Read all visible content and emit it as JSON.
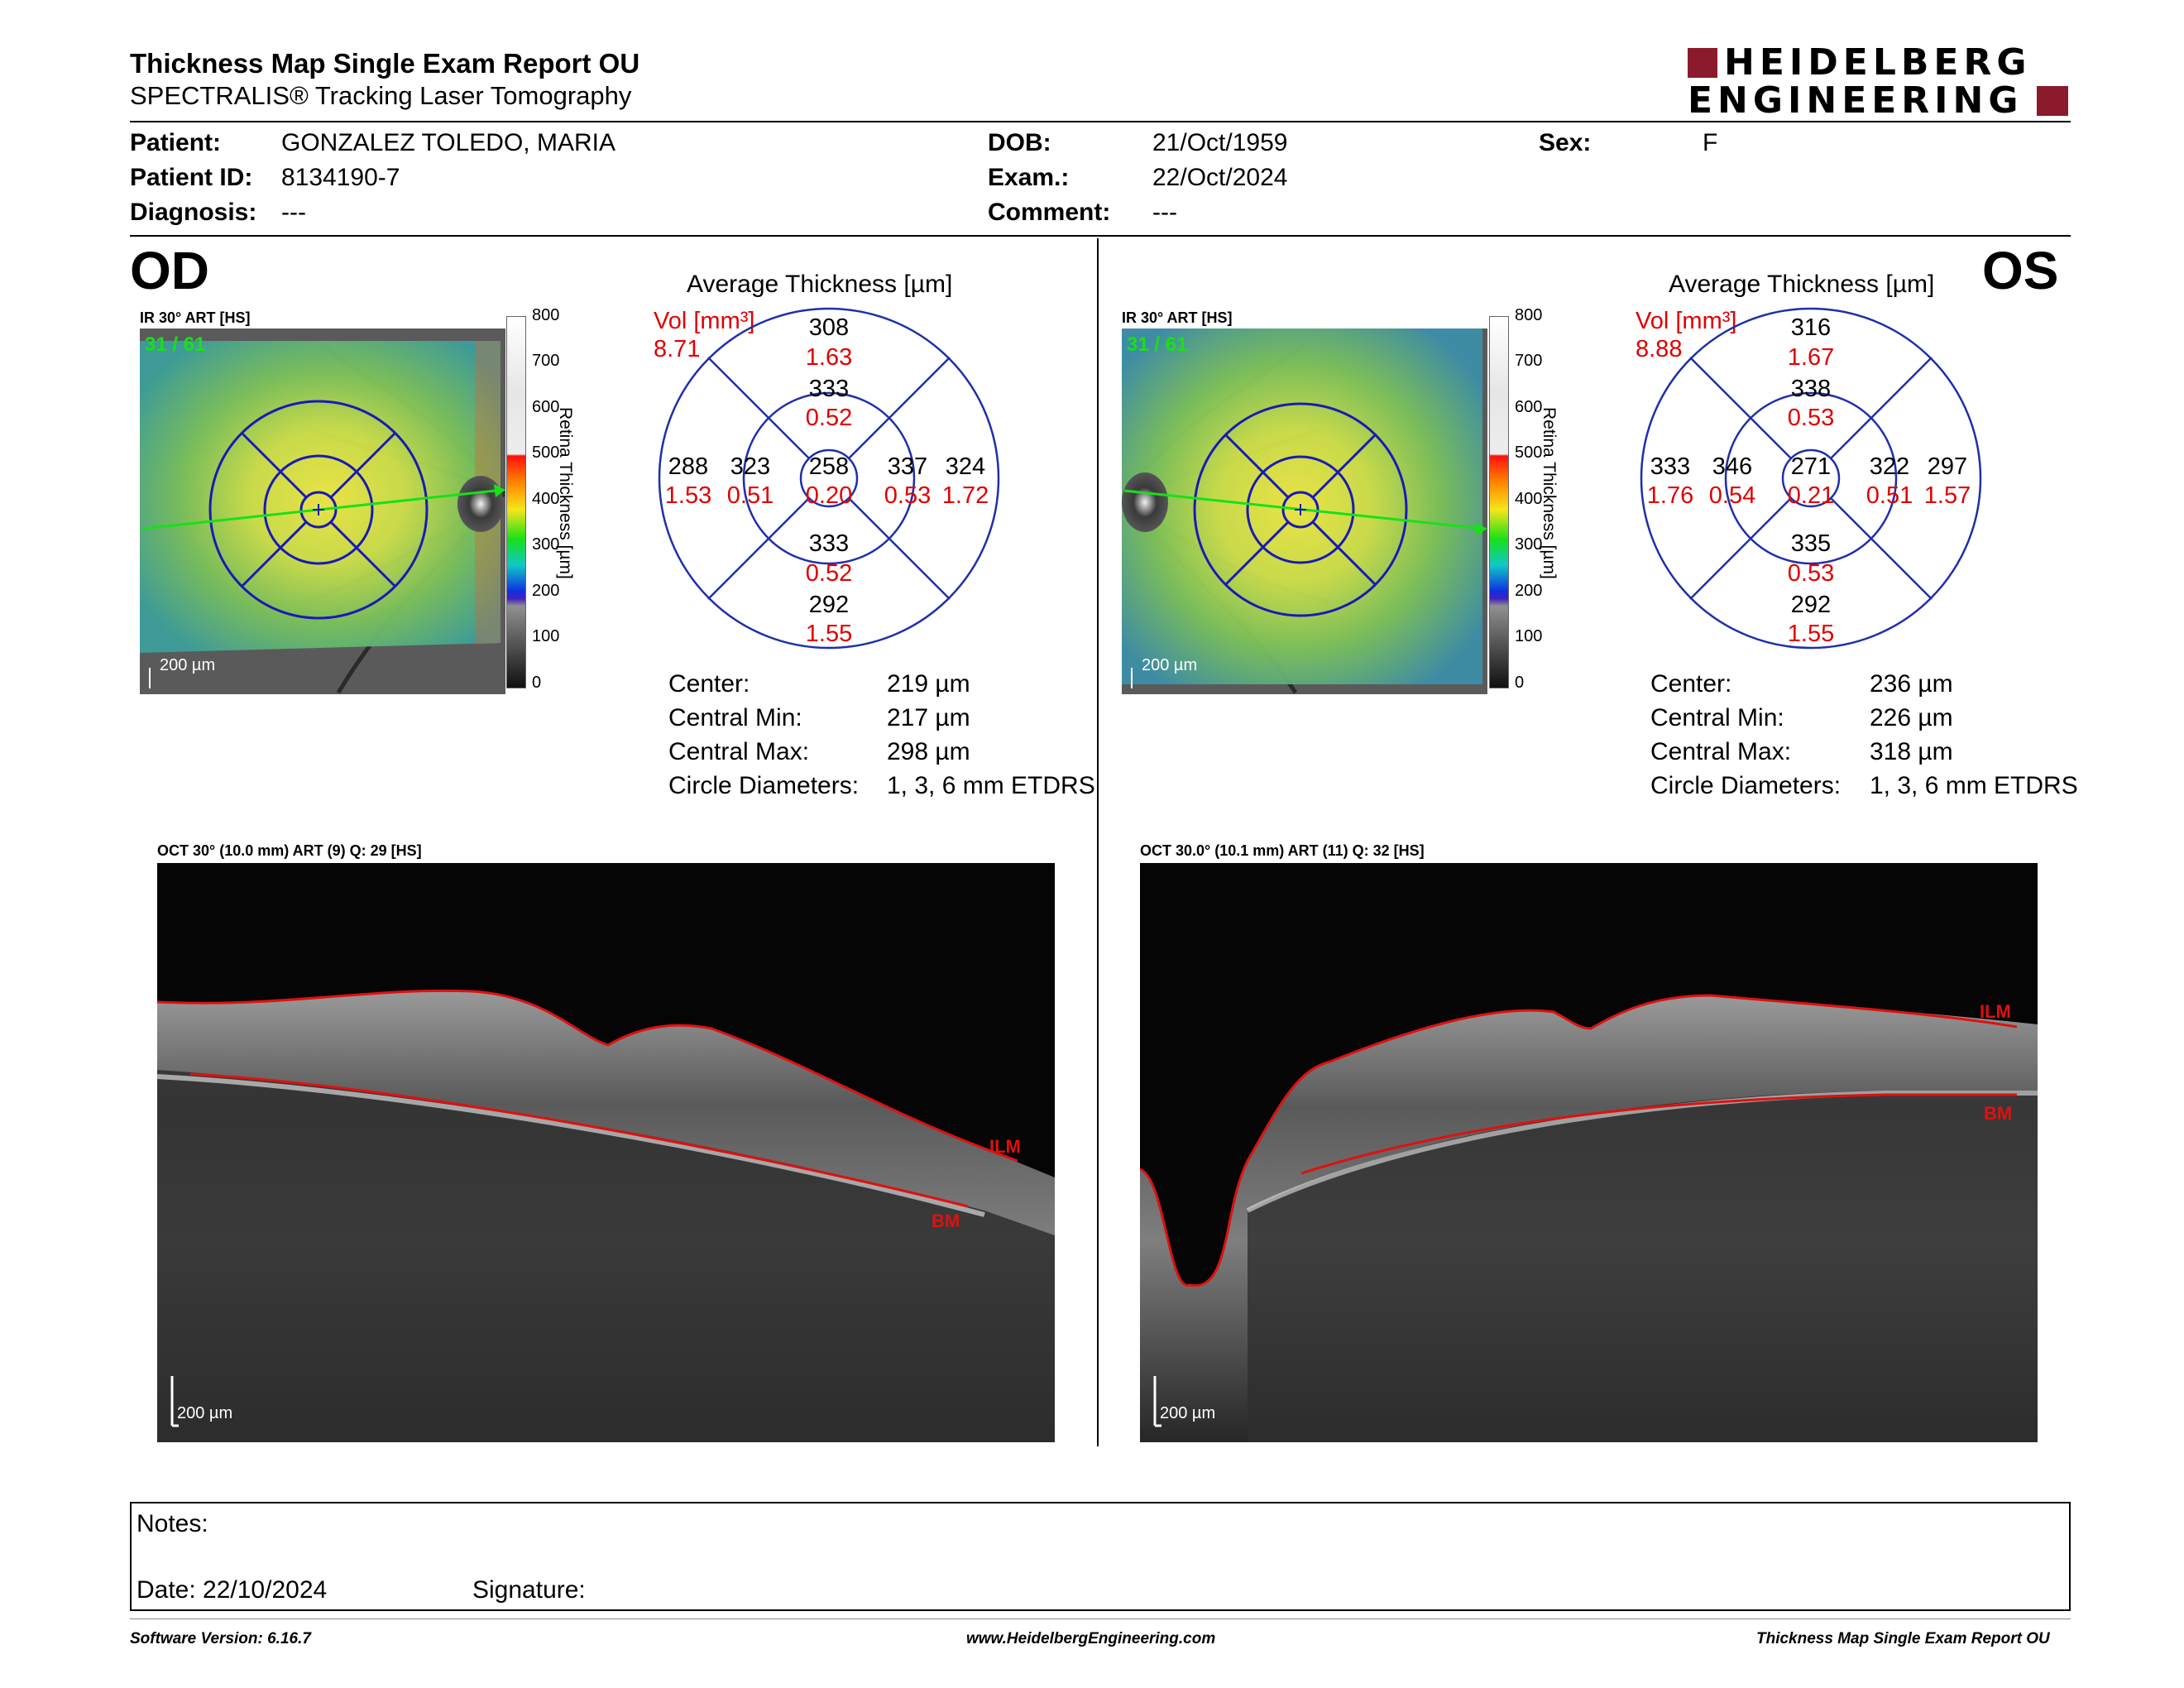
{
  "header": {
    "title": "Thickness Map Single Exam Report OU",
    "subtitle": "SPECTRALIS® Tracking Laser Tomography",
    "logo_line1": "HEIDELBERG",
    "logo_line2": "ENGINEERING"
  },
  "patient": {
    "patient_label": "Patient:",
    "patient_value": "GONZALEZ TOLEDO, MARIA",
    "id_label": "Patient ID:",
    "id_value": "8134190-7",
    "diagnosis_label": "Diagnosis:",
    "diagnosis_value": "---",
    "dob_label": "DOB:",
    "dob_value": "21/Oct/1959",
    "exam_label": "Exam.:",
    "exam_value": "22/Oct/2024",
    "comment_label": "Comment:",
    "comment_value": "---",
    "sex_label": "Sex:",
    "sex_value": "F"
  },
  "colorbar": {
    "ticks": [
      "800",
      "700",
      "600",
      "500",
      "400",
      "300",
      "200",
      "100",
      "0"
    ],
    "axis_label": "Retina Thickness [µm]"
  },
  "od": {
    "eye_label": "OD",
    "fundus_title": "IR 30° ART [HS]",
    "frame_counter": "31 / 61",
    "scale_label": "200 µm",
    "avg_title": "Average Thickness [µm]",
    "vol_label": "Vol [mm³]",
    "vol_total": "8.71",
    "sectors": {
      "outer_sup": {
        "t": "308",
        "v": "1.63"
      },
      "inner_sup": {
        "t": "333",
        "v": "0.52"
      },
      "outer_nas": {
        "t": "288",
        "v": "1.53"
      },
      "inner_nas": {
        "t": "323",
        "v": "0.51"
      },
      "center": {
        "t": "258",
        "v": "0.20"
      },
      "inner_tmp": {
        "t": "337",
        "v": "0.53"
      },
      "outer_tmp": {
        "t": "324",
        "v": "1.72"
      },
      "inner_inf": {
        "t": "333",
        "v": "0.52"
      },
      "outer_inf": {
        "t": "292",
        "v": "1.55"
      }
    },
    "stats": {
      "center_label": "Center:",
      "center_value": "219 µm",
      "min_label": "Central Min:",
      "min_value": "217 µm",
      "max_label": "Central Max:",
      "max_value": "298 µm",
      "diam_label": "Circle Diameters:",
      "diam_value": "1, 3, 6 mm ETDRS"
    },
    "oct_title": "OCT 30° (10.0 mm) ART (9) Q: 29 [HS]",
    "oct_ilm": "ILM",
    "oct_bm": "BM",
    "oct_scale": "200 µm"
  },
  "os": {
    "eye_label": "OS",
    "fundus_title": "IR 30° ART [HS]",
    "frame_counter": "31 / 61",
    "scale_label": "200 µm",
    "avg_title": "Average Thickness [µm]",
    "vol_label": "Vol [mm³]",
    "vol_total": "8.88",
    "sectors": {
      "outer_sup": {
        "t": "316",
        "v": "1.67"
      },
      "inner_sup": {
        "t": "338",
        "v": "0.53"
      },
      "outer_nas": {
        "t": "333",
        "v": "1.76"
      },
      "inner_nas": {
        "t": "346",
        "v": "0.54"
      },
      "center": {
        "t": "271",
        "v": "0.21"
      },
      "inner_tmp": {
        "t": "322",
        "v": "0.51"
      },
      "outer_tmp": {
        "t": "297",
        "v": "1.57"
      },
      "inner_inf": {
        "t": "335",
        "v": "0.53"
      },
      "outer_inf": {
        "t": "292",
        "v": "1.55"
      }
    },
    "stats": {
      "center_label": "Center:",
      "center_value": "236 µm",
      "min_label": "Central Min:",
      "min_value": "226 µm",
      "max_label": "Central Max:",
      "max_value": "318 µm",
      "diam_label": "Circle Diameters:",
      "diam_value": "1, 3, 6 mm ETDRS"
    },
    "oct_title": "OCT 30.0° (10.1 mm) ART (11) Q: 32 [HS]",
    "oct_ilm": "ILM",
    "oct_bm": "BM",
    "oct_scale": "200 µm"
  },
  "notes": {
    "notes_label": "Notes:",
    "date_label": "Date: 22/10/2024",
    "signature_label": "Signature:"
  },
  "footer": {
    "software": "Software Version: 6.16.7",
    "website": "www.HeidelbergEngineering.com",
    "report_name": "Thickness Map Single Exam Report OU"
  },
  "colors": {
    "volume_red": "#e00000",
    "etdrs_blue": "#1f2fa8",
    "logo_maroon": "#8b1a2c",
    "scan_line_green": "#19e019"
  }
}
